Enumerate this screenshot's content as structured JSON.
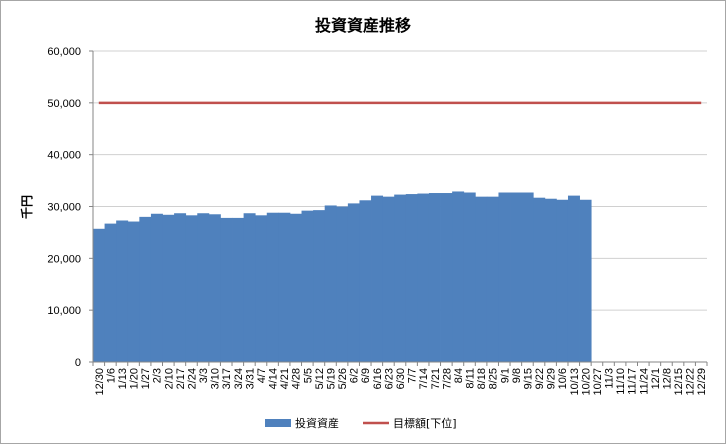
{
  "chart_data": {
    "type": "bar",
    "title": "投資資産推移",
    "xlabel": "",
    "ylabel": "千円",
    "ylim": [
      0,
      60000
    ],
    "yticks": [
      0,
      10000,
      20000,
      30000,
      40000,
      50000,
      60000
    ],
    "ytick_labels": [
      "0",
      "10,000",
      "20,000",
      "30,000",
      "40,000",
      "50,000",
      "60,000"
    ],
    "grid": true,
    "legend_position": "bottom",
    "categories": [
      "12/30",
      "1/6",
      "1/13",
      "1/20",
      "1/27",
      "2/3",
      "2/10",
      "2/17",
      "2/24",
      "3/3",
      "3/10",
      "3/17",
      "3/24",
      "3/31",
      "4/7",
      "4/14",
      "4/21",
      "4/28",
      "5/5",
      "5/12",
      "5/19",
      "5/26",
      "6/2",
      "6/9",
      "6/16",
      "6/23",
      "6/30",
      "7/7",
      "7/14",
      "7/21",
      "7/28",
      "8/4",
      "8/11",
      "8/18",
      "8/25",
      "9/1",
      "9/8",
      "9/15",
      "9/22",
      "9/29",
      "10/6",
      "10/13",
      "10/20",
      "10/27",
      "11/3",
      "11/10",
      "11/17",
      "11/24",
      "12/1",
      "12/8",
      "12/15",
      "12/22",
      "12/29"
    ],
    "series": [
      {
        "name": "投資資産",
        "type": "bar",
        "color": "#4f81bd",
        "values": [
          25700,
          26700,
          27300,
          27100,
          28000,
          28600,
          28400,
          28700,
          28300,
          28700,
          28500,
          27800,
          27800,
          28700,
          28300,
          28800,
          28800,
          28600,
          29200,
          29300,
          30200,
          30000,
          30600,
          31200,
          32100,
          31900,
          32300,
          32400,
          32500,
          32600,
          32600,
          32900,
          32700,
          31900,
          31900,
          32700,
          32700,
          32700,
          31700,
          31500,
          31300,
          32100,
          31300,
          null,
          null,
          null,
          null,
          null,
          null,
          null,
          null,
          null,
          null
        ]
      },
      {
        "name": "目標額[下位]",
        "type": "line",
        "color": "#c0504d",
        "values": [
          50000,
          50000,
          50000,
          50000,
          50000,
          50000,
          50000,
          50000,
          50000,
          50000,
          50000,
          50000,
          50000,
          50000,
          50000,
          50000,
          50000,
          50000,
          50000,
          50000,
          50000,
          50000,
          50000,
          50000,
          50000,
          50000,
          50000,
          50000,
          50000,
          50000,
          50000,
          50000,
          50000,
          50000,
          50000,
          50000,
          50000,
          50000,
          50000,
          50000,
          50000,
          50000,
          50000,
          50000,
          50000,
          50000,
          50000,
          50000,
          50000,
          50000,
          50000,
          50000,
          50000
        ]
      }
    ]
  }
}
